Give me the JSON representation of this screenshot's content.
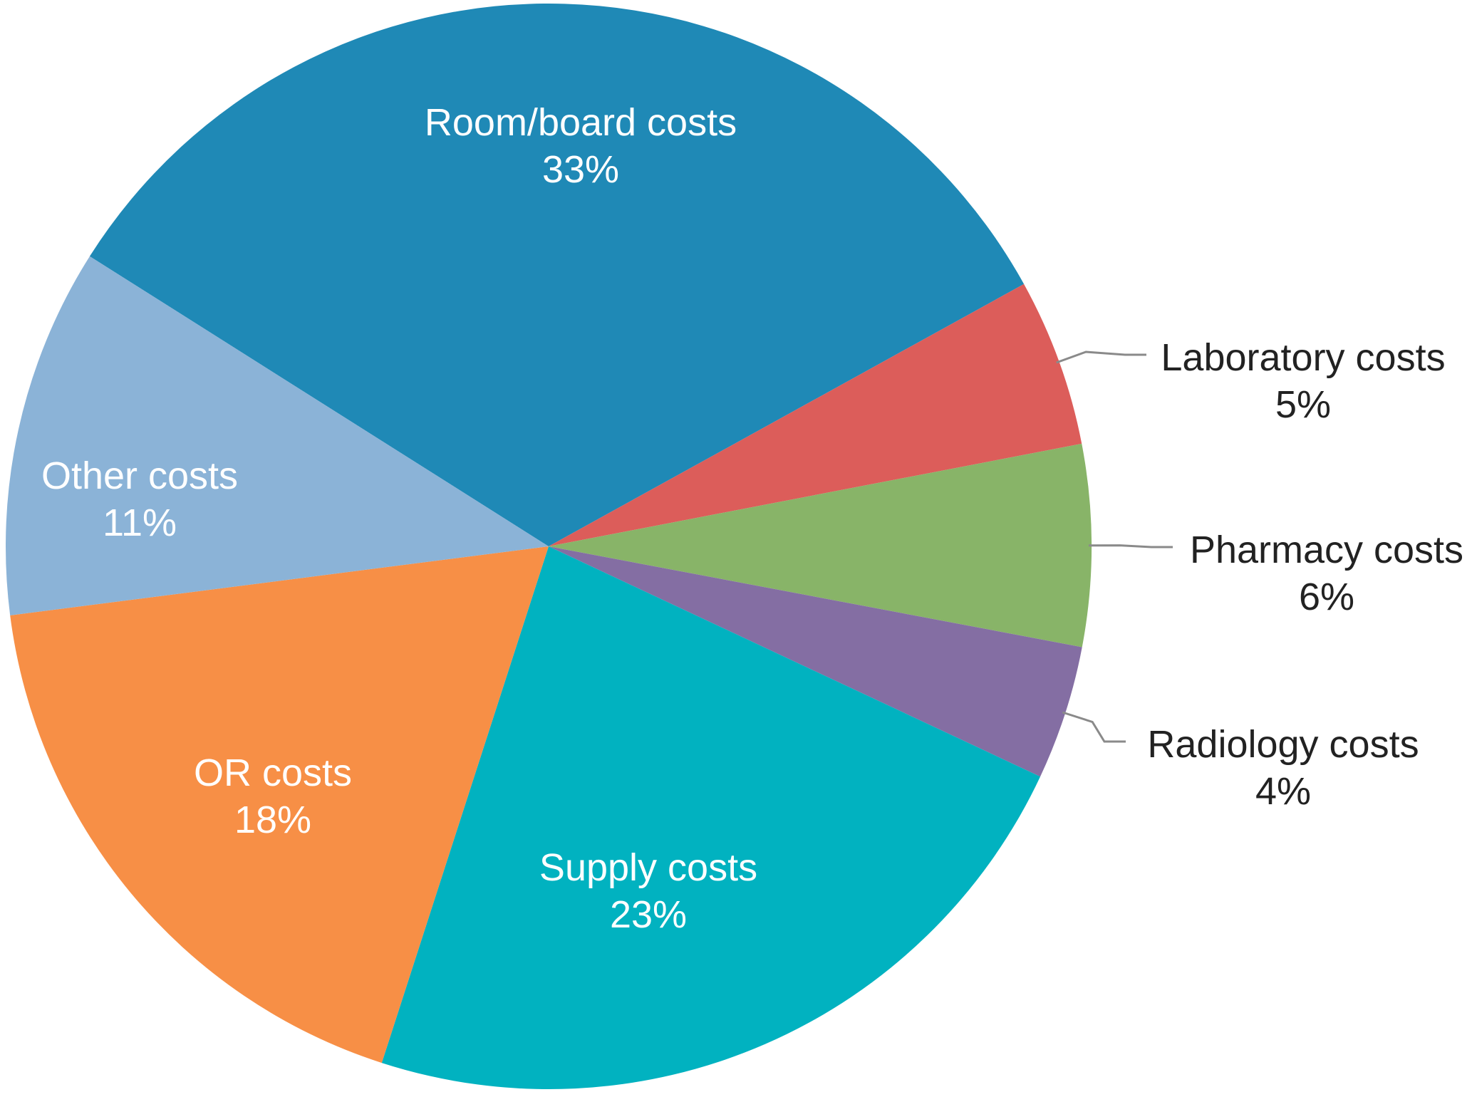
{
  "chart_data": {
    "type": "pie",
    "categories": [
      "Room/board costs",
      "Laboratory costs",
      "Pharmacy costs",
      "Radiology costs",
      "Supply costs",
      "OR costs",
      "Other costs"
    ],
    "values": [
      33,
      5,
      6,
      4,
      23,
      18,
      11
    ],
    "value_labels": [
      "33%",
      "5%",
      "6%",
      "4%",
      "23%",
      "18%",
      "11%"
    ],
    "colors": [
      "#1f89b6",
      "#dc5d5a",
      "#88b468",
      "#846ea3",
      "#01b2c0",
      "#f78f46",
      "#8bb3d7"
    ],
    "label_colors": [
      "#ffffff",
      "#222222",
      "#222222",
      "#222222",
      "#ffffff",
      "#ffffff",
      "#ffffff"
    ],
    "leader_color": "#8a8a8a",
    "legend": "none"
  }
}
